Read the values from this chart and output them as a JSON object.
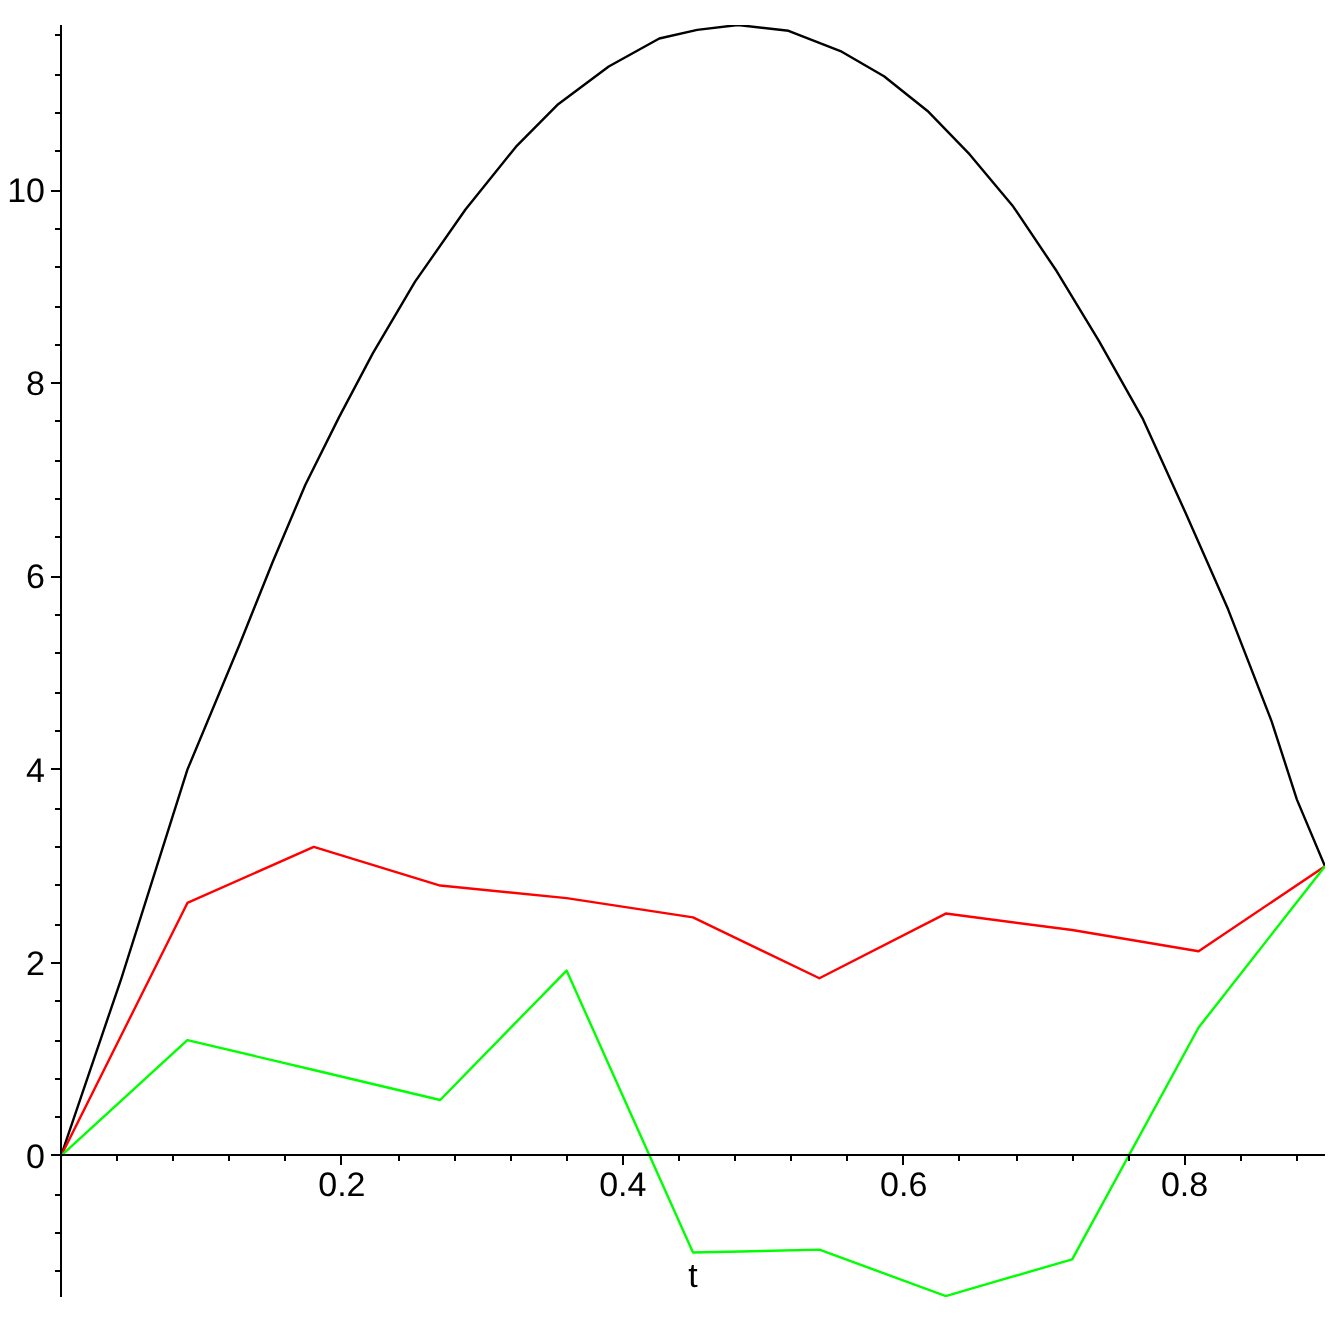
{
  "chart_data": {
    "type": "line",
    "xlabel": "t",
    "xlim": [
      0,
      0.9
    ],
    "ylim": [
      -1.46,
      11.71
    ],
    "xticks": [
      0.2,
      0.4,
      0.6,
      0.8,
      {
        "value": 0.04,
        "label": null
      },
      {
        "value": 0.08,
        "label": null
      },
      {
        "value": 0.12,
        "label": null
      },
      {
        "value": 0.16,
        "label": null
      },
      {
        "value": 0.24,
        "label": null
      },
      {
        "value": 0.28,
        "label": null
      },
      {
        "value": 0.32,
        "label": null
      },
      {
        "value": 0.36,
        "label": null
      },
      {
        "value": 0.44,
        "label": null
      },
      {
        "value": 0.48,
        "label": null
      },
      {
        "value": 0.52,
        "label": null
      },
      {
        "value": 0.56,
        "label": null
      },
      {
        "value": 0.64,
        "label": null
      },
      {
        "value": 0.68,
        "label": null
      },
      {
        "value": 0.72,
        "label": null
      },
      {
        "value": 0.76,
        "label": null
      },
      {
        "value": 0.84,
        "label": null
      },
      {
        "value": 0.88,
        "label": null
      }
    ],
    "yticks": [
      0,
      2,
      4,
      6,
      8,
      10,
      {
        "value": -1.2,
        "label": null
      },
      {
        "value": -0.8,
        "label": null
      },
      {
        "value": -0.4,
        "label": null
      },
      {
        "value": 0.4,
        "label": null
      },
      {
        "value": 0.8,
        "label": null
      },
      {
        "value": 1.2,
        "label": null
      },
      {
        "value": 1.6,
        "label": null
      },
      {
        "value": 2.4,
        "label": null
      },
      {
        "value": 2.8,
        "label": null
      },
      {
        "value": 3.2,
        "label": null
      },
      {
        "value": 3.6,
        "label": null
      },
      {
        "value": 4.4,
        "label": null
      },
      {
        "value": 4.8,
        "label": null
      },
      {
        "value": 5.2,
        "label": null
      },
      {
        "value": 5.6,
        "label": null
      },
      {
        "value": 6.4,
        "label": null
      },
      {
        "value": 6.8,
        "label": null
      },
      {
        "value": 7.2,
        "label": null
      },
      {
        "value": 7.6,
        "label": null
      },
      {
        "value": 8.4,
        "label": null
      },
      {
        "value": 8.8,
        "label": null
      },
      {
        "value": 9.2,
        "label": null
      },
      {
        "value": 9.6,
        "label": null
      },
      {
        "value": 10.4,
        "label": null
      },
      {
        "value": 10.8,
        "label": null
      },
      {
        "value": 11.2,
        "label": null
      },
      {
        "value": 11.6,
        "label": null
      }
    ],
    "grid": false,
    "marker": "none",
    "line_style": "solid",
    "series": [
      {
        "color": "#000000",
        "x": [
          0,
          0.043,
          0.09,
          0.127,
          0.151,
          0.174,
          0.198,
          0.222,
          0.252,
          0.288,
          0.324,
          0.354,
          0.39,
          0.426,
          0.453,
          0.482,
          0.518,
          0.555,
          0.586,
          0.617,
          0.647,
          0.678,
          0.709,
          0.739,
          0.77,
          0.801,
          0.831,
          0.862,
          0.88,
          0.9
        ],
        "values": [
          0,
          1.84,
          4.0,
          5.29,
          6.16,
          6.95,
          7.65,
          8.31,
          9.05,
          9.8,
          10.45,
          10.89,
          11.28,
          11.57,
          11.66,
          11.71,
          11.65,
          11.44,
          11.18,
          10.82,
          10.37,
          9.83,
          9.16,
          8.44,
          7.64,
          6.65,
          5.66,
          4.5,
          3.69,
          3.0
        ]
      },
      {
        "color": "#ff0000",
        "x": [
          0,
          0.09,
          0.18,
          0.27,
          0.36,
          0.45,
          0.54,
          0.63,
          0.72,
          0.81,
          0.9
        ],
        "values": [
          0,
          2.62,
          3.2,
          2.8,
          2.67,
          2.47,
          1.84,
          2.51,
          2.34,
          2.12,
          3.0
        ]
      },
      {
        "color": "#00ff00",
        "x": [
          0,
          0.09,
          0.18,
          0.27,
          0.36,
          0.45,
          0.54,
          0.63,
          0.72,
          0.81,
          0.9
        ],
        "values": [
          0,
          1.2,
          0.89,
          0.58,
          1.92,
          -1.0,
          -0.97,
          -1.45,
          -1.07,
          1.33,
          3.0
        ]
      }
    ]
  }
}
